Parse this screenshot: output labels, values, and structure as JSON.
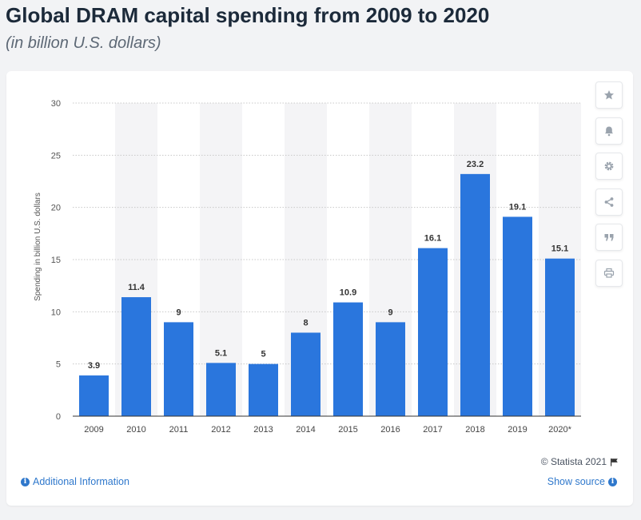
{
  "header": {
    "title": "Global DRAM capital spending from 2009 to 2020",
    "subtitle": "(in billion U.S. dollars)"
  },
  "chart_data": {
    "type": "bar",
    "categories": [
      "2009",
      "2010",
      "2011",
      "2012",
      "2013",
      "2014",
      "2015",
      "2016",
      "2017",
      "2018",
      "2019",
      "2020*"
    ],
    "values": [
      3.9,
      11.4,
      9,
      5.1,
      5,
      8,
      10.9,
      9,
      16.1,
      23.2,
      19.1,
      15.1
    ],
    "data_labels": [
      "3.9",
      "11.4",
      "9",
      "5.1",
      "5",
      "8",
      "10.9",
      "9",
      "16.1",
      "23.2",
      "19.1",
      "15.1"
    ],
    "ylabel": "Spending in billion U.S. dollars",
    "xlabel": "",
    "ylim": [
      0,
      30
    ],
    "yticks": [
      0,
      5,
      10,
      15,
      20,
      25,
      30
    ],
    "ytick_labels": [
      "0",
      "5",
      "10",
      "15",
      "20",
      "25",
      "30"
    ],
    "grid": true,
    "bar_color": "#2a76dd",
    "band_color": "#f4f4f6"
  },
  "toolbar": {
    "icons": [
      "star-icon",
      "bell-icon",
      "gear-icon",
      "share-icon",
      "quote-icon",
      "print-icon"
    ]
  },
  "footer": {
    "copyright": "© Statista 2021",
    "additional_info": "Additional Information",
    "show_source": "Show source"
  },
  "colors": {
    "link": "#2f78cc",
    "title": "#1c2a3a"
  }
}
